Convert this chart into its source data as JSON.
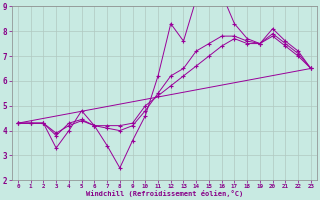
{
  "bg_color": "#c8eae2",
  "line_color": "#990099",
  "grid_color": "#b0c8c0",
  "xlabel": "Windchill (Refroidissement éolien,°C)",
  "xlim": [
    -0.5,
    23.5
  ],
  "ylim": [
    2,
    9
  ],
  "yticks": [
    2,
    3,
    4,
    5,
    6,
    7,
    8,
    9
  ],
  "xticks": [
    0,
    1,
    2,
    3,
    4,
    5,
    6,
    7,
    8,
    9,
    10,
    11,
    12,
    13,
    14,
    15,
    16,
    17,
    18,
    19,
    20,
    21,
    22,
    23
  ],
  "lines": [
    {
      "x": [
        0,
        1,
        2,
        3,
        4,
        5,
        6,
        7,
        8,
        9,
        10,
        11,
        12,
        13,
        14,
        15,
        16,
        17,
        18,
        19,
        20,
        21,
        22,
        23
      ],
      "y": [
        4.3,
        4.3,
        4.3,
        3.3,
        4.0,
        4.8,
        4.2,
        3.4,
        2.5,
        3.6,
        4.6,
        6.2,
        8.3,
        7.6,
        9.3,
        9.3,
        9.5,
        8.3,
        7.7,
        7.5,
        8.1,
        7.6,
        7.2,
        6.5
      ],
      "marker": true
    },
    {
      "x": [
        0,
        1,
        2,
        3,
        4,
        5,
        6,
        7,
        8,
        9,
        10,
        11,
        12,
        13,
        14,
        15,
        16,
        17,
        18,
        19,
        20,
        21,
        22,
        23
      ],
      "y": [
        4.3,
        4.3,
        4.3,
        3.8,
        4.3,
        4.45,
        4.2,
        4.2,
        4.2,
        4.3,
        5.0,
        5.4,
        5.8,
        6.2,
        6.6,
        7.0,
        7.4,
        7.7,
        7.5,
        7.5,
        7.8,
        7.4,
        7.0,
        6.5
      ],
      "marker": true
    },
    {
      "x": [
        0,
        1,
        2,
        3,
        4,
        5,
        6,
        7,
        8,
        9,
        10,
        11,
        12,
        13,
        14,
        15,
        16,
        17,
        18,
        19,
        20,
        21,
        22,
        23
      ],
      "y": [
        4.3,
        4.3,
        4.3,
        3.9,
        4.2,
        4.4,
        4.2,
        4.1,
        4.0,
        4.2,
        4.8,
        5.5,
        6.2,
        6.5,
        7.2,
        7.5,
        7.8,
        7.8,
        7.6,
        7.5,
        7.9,
        7.5,
        7.1,
        6.5
      ],
      "marker": true
    },
    {
      "x": [
        0,
        23
      ],
      "y": [
        4.3,
        6.5
      ],
      "marker": false
    }
  ]
}
